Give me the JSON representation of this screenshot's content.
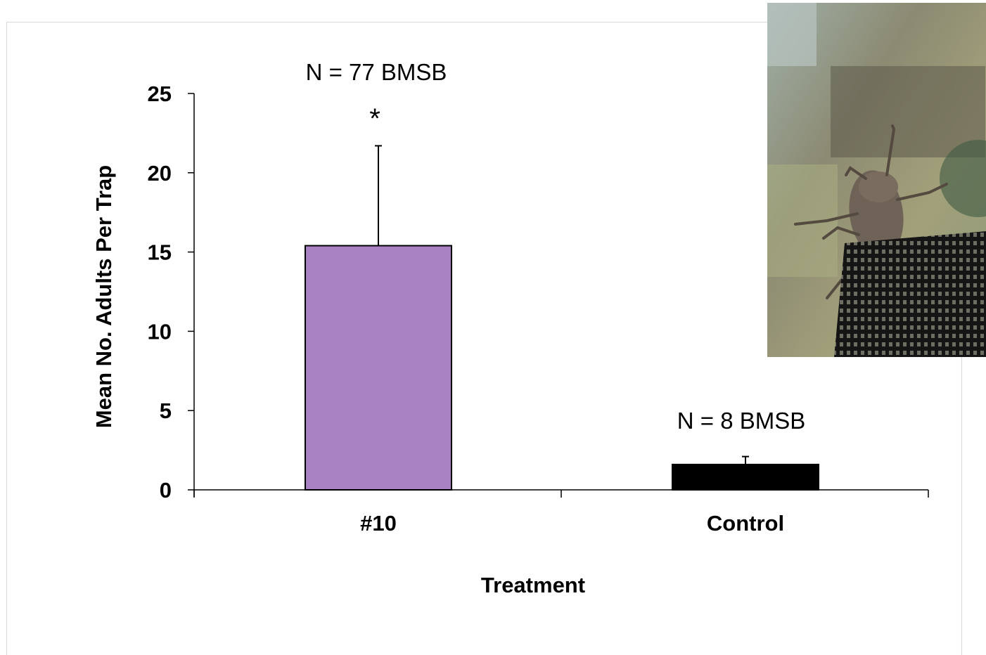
{
  "chart_data": {
    "type": "bar",
    "categories": [
      "#10",
      "Control"
    ],
    "values": [
      15.4,
      1.6
    ],
    "error_upper": [
      21.7,
      2.1
    ],
    "colors": [
      "#a982c4",
      "#000000"
    ],
    "xlabel": "Treatment",
    "ylabel": "Mean No. Adults Per Trap",
    "ylim": [
      0,
      25
    ],
    "yticks": [
      "0",
      "5",
      "10",
      "15",
      "20",
      "25"
    ],
    "grid": false,
    "annotations": [
      {
        "category": "#10",
        "text": "N = 77 BMSB"
      },
      {
        "category": "#10",
        "text": "*"
      },
      {
        "category": "Control",
        "text": "N = 8 BMSB"
      }
    ]
  },
  "photo": {
    "icon": "stink-bug-photo"
  }
}
